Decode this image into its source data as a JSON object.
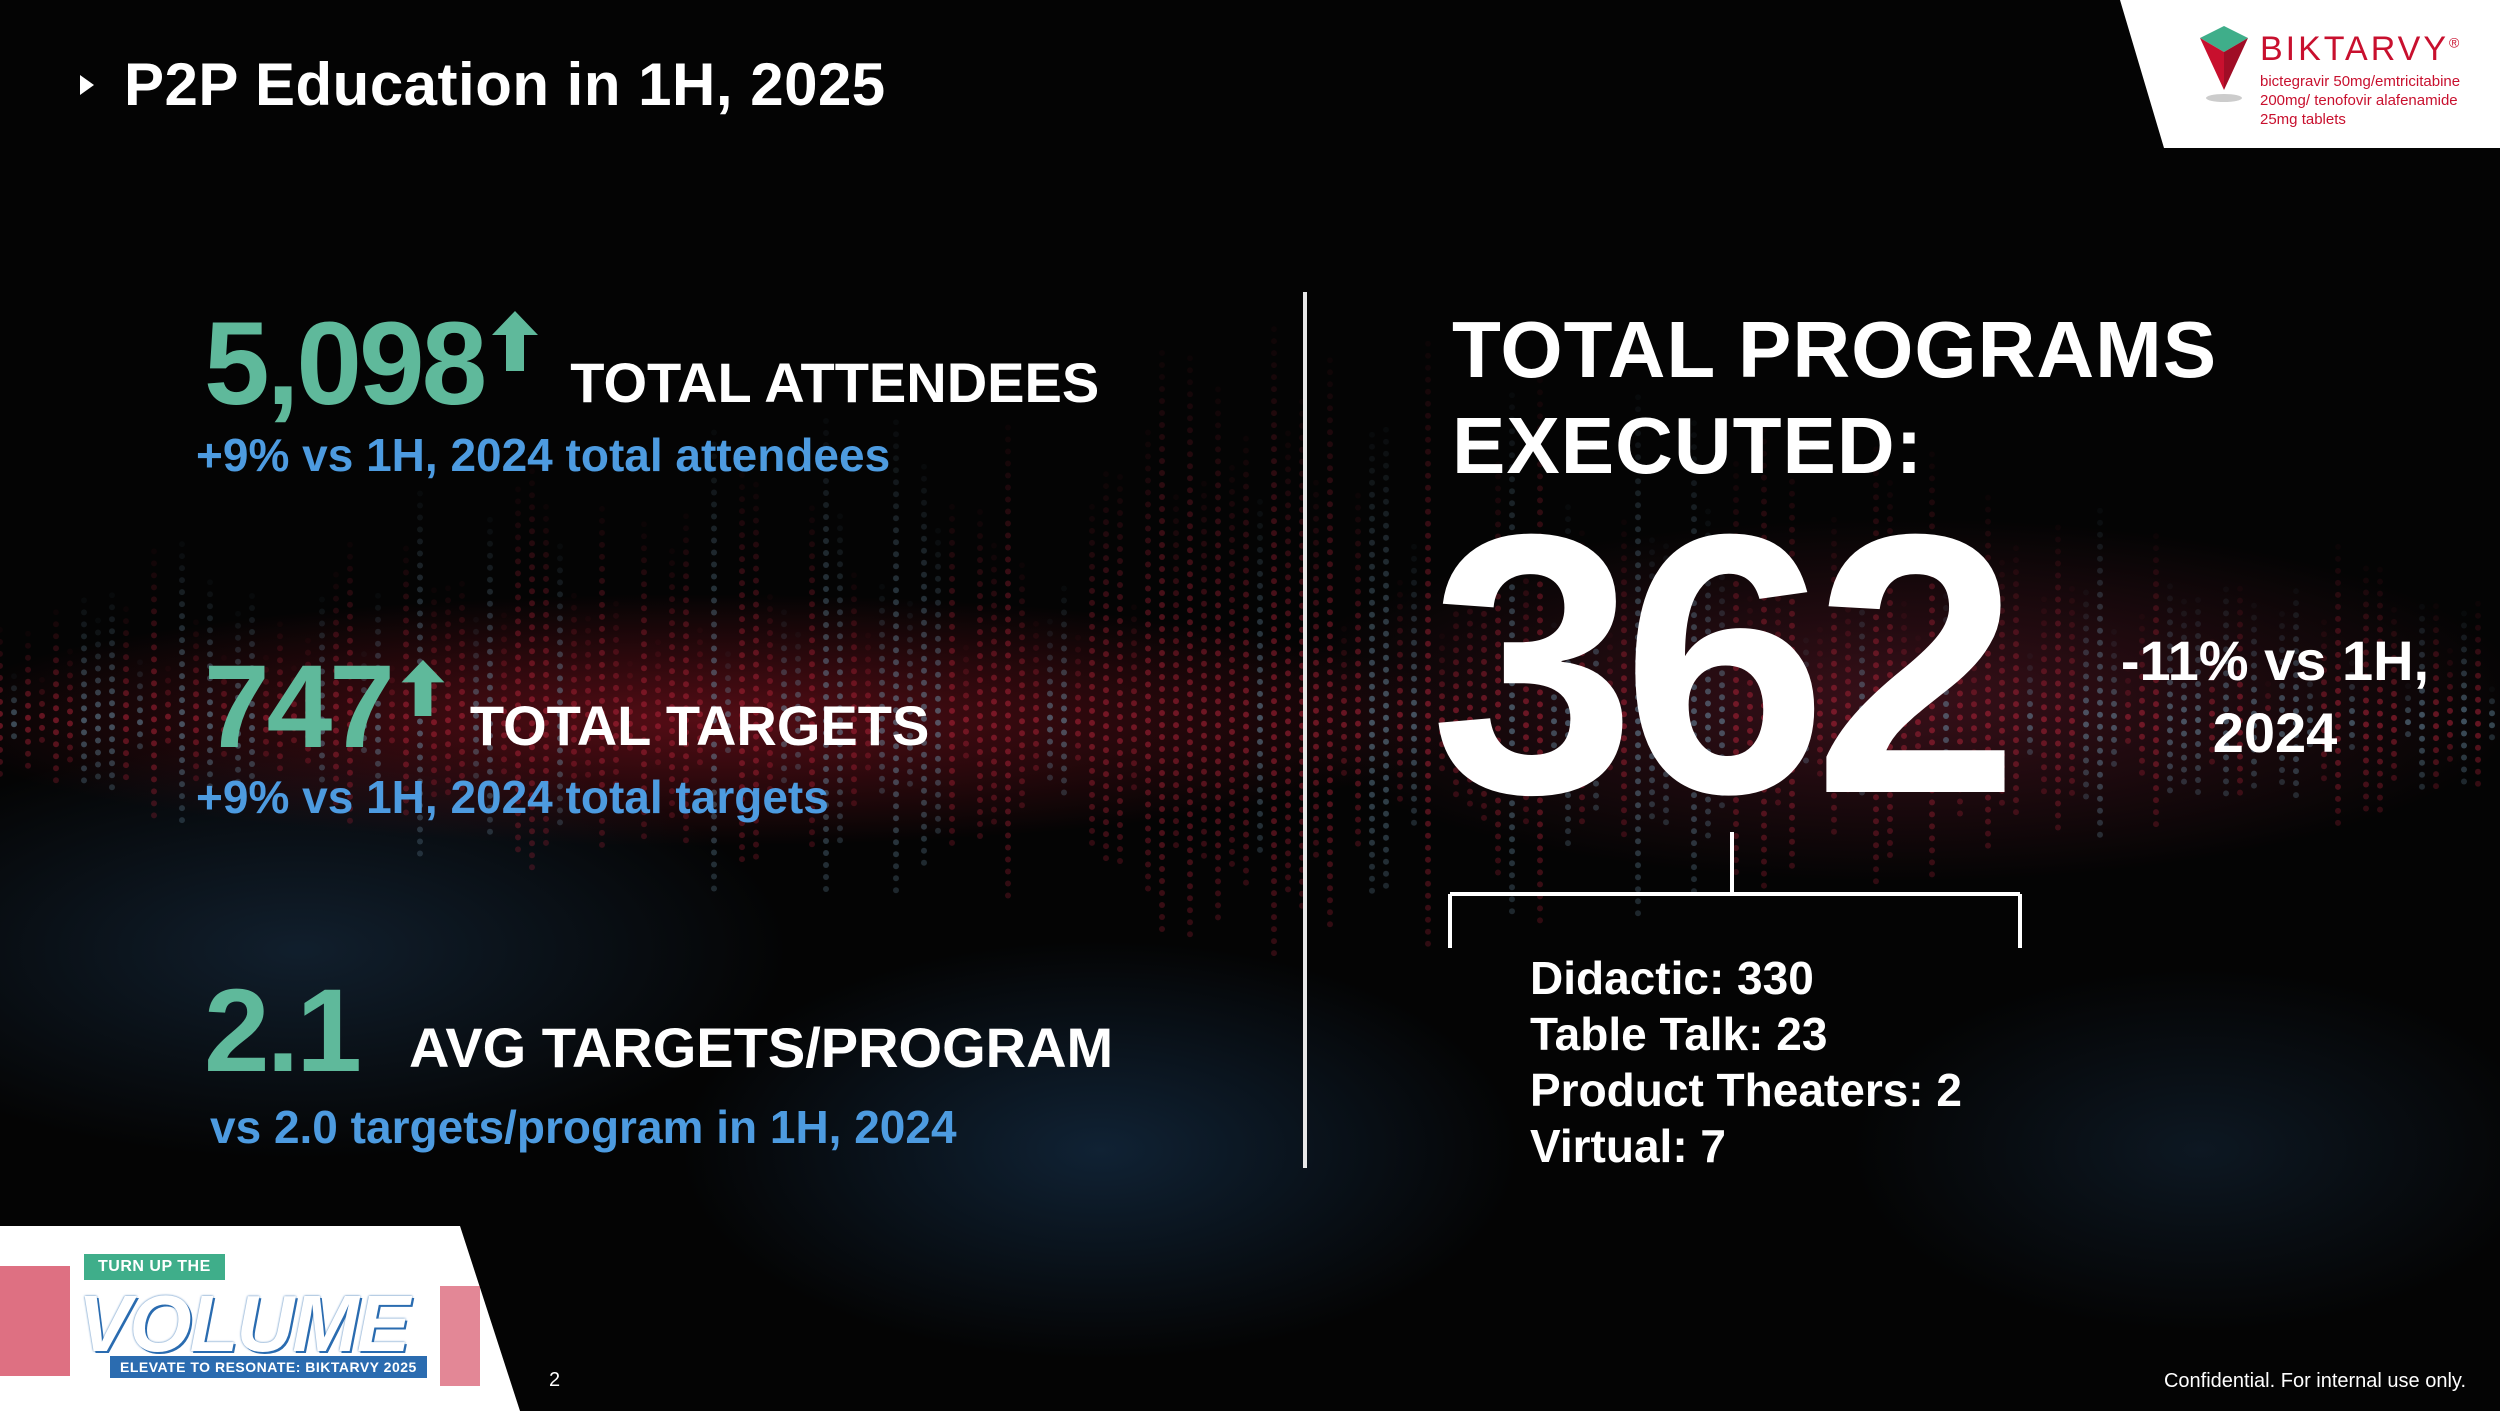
{
  "slide": {
    "title": "P2P Education in 1H, 2025"
  },
  "brand": {
    "name": "BIKTARVY",
    "registered": "®",
    "subtitle": "bictegravir 50mg/emtricitabine 200mg/ tenofovir alafenamide 25mg tablets"
  },
  "stats": [
    {
      "value": "5,098",
      "label": "TOTAL ATTENDEES",
      "comparison": "+9% vs 1H, 2024 total attendees",
      "trend": "up"
    },
    {
      "value": "747",
      "label": "TOTAL TARGETS",
      "comparison": "+9% vs 1H, 2024 total targets",
      "trend": "up"
    },
    {
      "value": "2.1",
      "label": "AVG TARGETS/PROGRAM",
      "comparison": "vs 2.0 targets/program in 1H, 2024",
      "trend": "none"
    }
  ],
  "programs": {
    "title_line1": "TOTAL PROGRAMS",
    "title_line2": "EXECUTED:",
    "total": "362",
    "delta_line1": "-11% vs 1H,",
    "delta_line2": "2024",
    "breakdown": [
      "Didactic: 330",
      "Table Talk: 23",
      "Product Theaters: 2",
      "Virtual: 7"
    ]
  },
  "badge": {
    "top": "TURN UP THE",
    "main": "VOLUME",
    "bottom": "ELEVATE TO RESONATE: BIKTARVY 2025"
  },
  "footer": {
    "page_number": "2",
    "confidential": "Confidential. For internal use only."
  },
  "colors": {
    "accent_green": "#5fb99b",
    "accent_blue": "#4d9be0",
    "brand_red": "#c8102e",
    "background": "#040404"
  }
}
